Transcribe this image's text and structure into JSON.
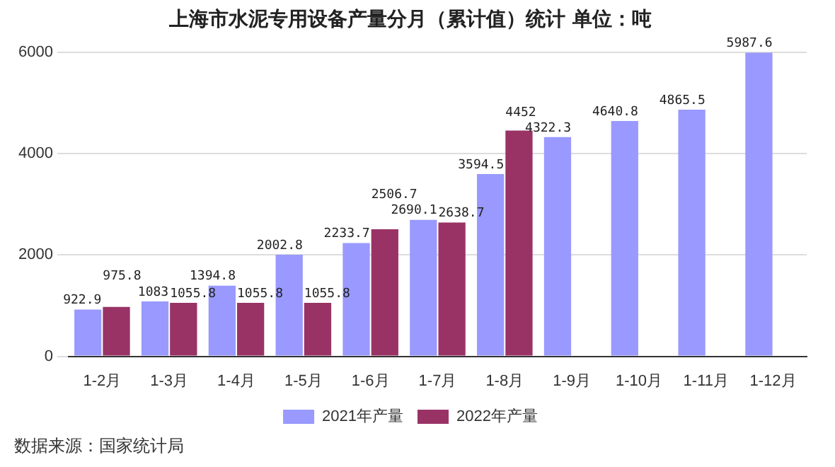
{
  "chart_data": {
    "type": "bar",
    "title": "上海市水泥专用设备产量分月（累计值）统计 单位：吨",
    "categories": [
      "1-2月",
      "1-3月",
      "1-4月",
      "1-5月",
      "1-6月",
      "1-7月",
      "1-8月",
      "1-9月",
      "1-10月",
      "1-11月",
      "1-12月"
    ],
    "series": [
      {
        "name": "2021年产量",
        "color": "#9999ff",
        "values": [
          922.9,
          1083,
          1394.8,
          2002.8,
          2233.7,
          2690.1,
          3594.5,
          4322.3,
          4640.8,
          4865.5,
          5987.6
        ]
      },
      {
        "name": "2022年产量",
        "color": "#993366",
        "values": [
          975.8,
          1055.8,
          1055.8,
          1055.8,
          2506.7,
          2638.7,
          4452,
          null,
          null,
          null,
          null
        ]
      }
    ],
    "ylim": [
      0,
      6000
    ],
    "yticks": [
      0,
      2000,
      4000,
      6000
    ],
    "grid": "y",
    "legend": "bottom",
    "data_labels": true,
    "annotations": [
      "数据来源：国家统计局"
    ]
  }
}
